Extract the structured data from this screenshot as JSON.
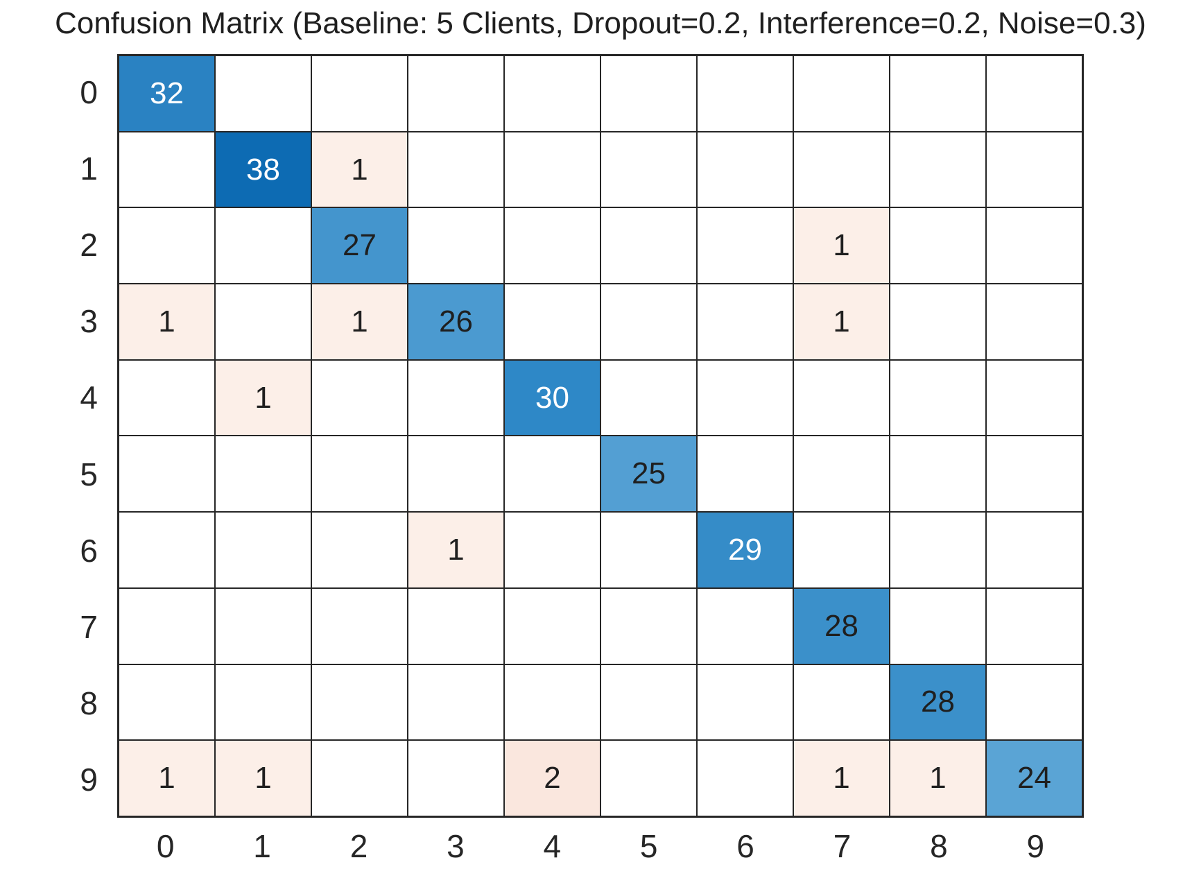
{
  "chart_data": {
    "type": "heatmap",
    "title": "Confusion Matrix (Baseline: 5 Clients, Dropout=0.2, Interference=0.2, Noise=0.3)",
    "x_tick_labels": [
      "0",
      "1",
      "2",
      "3",
      "4",
      "5",
      "6",
      "7",
      "8",
      "9"
    ],
    "y_tick_labels": [
      "0",
      "1",
      "2",
      "3",
      "4",
      "5",
      "6",
      "7",
      "8",
      "9"
    ],
    "matrix": [
      [
        32,
        0,
        0,
        0,
        0,
        0,
        0,
        0,
        0,
        0
      ],
      [
        0,
        38,
        1,
        0,
        0,
        0,
        0,
        0,
        0,
        0
      ],
      [
        0,
        0,
        27,
        0,
        0,
        0,
        0,
        1,
        0,
        0
      ],
      [
        1,
        0,
        1,
        26,
        0,
        0,
        0,
        1,
        0,
        0
      ],
      [
        0,
        1,
        0,
        0,
        30,
        0,
        0,
        0,
        0,
        0
      ],
      [
        0,
        0,
        0,
        0,
        0,
        25,
        0,
        0,
        0,
        0
      ],
      [
        0,
        0,
        0,
        1,
        0,
        0,
        29,
        0,
        0,
        0
      ],
      [
        0,
        0,
        0,
        0,
        0,
        0,
        0,
        28,
        0,
        0
      ],
      [
        0,
        0,
        0,
        0,
        0,
        0,
        0,
        0,
        28,
        0
      ],
      [
        1,
        1,
        0,
        0,
        2,
        0,
        0,
        1,
        1,
        24
      ]
    ],
    "show_zero_values": false,
    "value_range": [
      0,
      38
    ],
    "grid_on": true,
    "legend_position": "none",
    "xlabel": "",
    "ylabel": "",
    "colors": {
      "figure_background": "#ffffff",
      "grid_line": "#262626",
      "tick_label": "#262626",
      "cell_text_dark": "#1f1f1f",
      "cell_text_light": "#ffffff",
      "cell_background_by_value": {
        "0": "#ffffff",
        "1": "#fcefe8",
        "2": "#fae7de",
        "24": "#5aa4d5",
        "25": "#539fd3",
        "26": "#4b9ad0",
        "27": "#4495cd",
        "28": "#3b90ca",
        "29": "#358cc8",
        "30": "#2e88c7",
        "32": "#2a82c2",
        "38": "#0d6bb3"
      },
      "white_text_values": [
        29,
        30,
        32,
        38
      ]
    }
  }
}
